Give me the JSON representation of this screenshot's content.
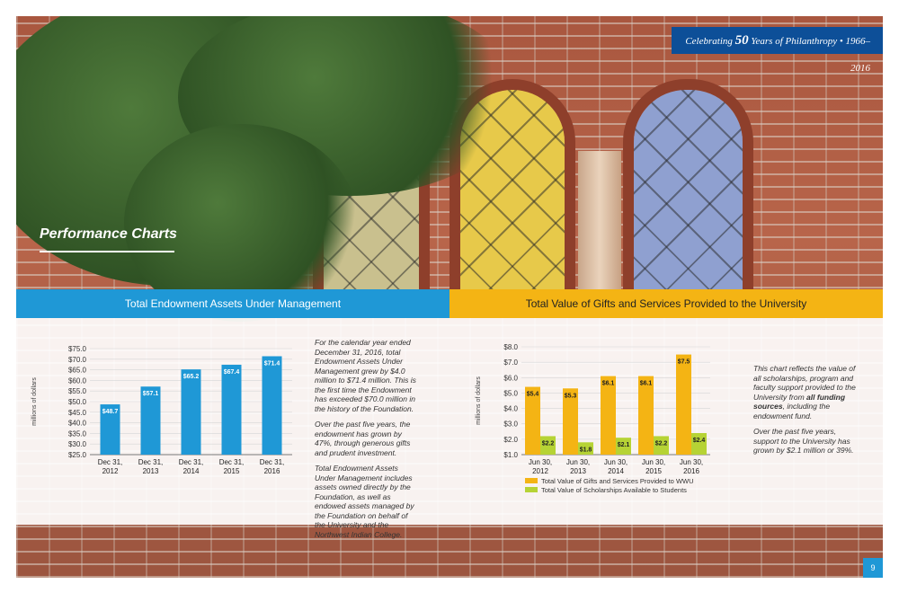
{
  "banner": {
    "pre": "Celebrating ",
    "number": "50",
    "post": " Years of Philanthropy  •  1966–2016"
  },
  "section_title": "Performance Charts",
  "left": {
    "header": "Total Endowment Assets Under Management",
    "paragraphs": [
      "For the calendar year ended December 31, 2016, total Endowment Assets Under Management grew by $4.0 million to $71.4 million. This is the first time the Endowment has exceeded $70.0 million in the history of the Foundation.",
      "Over the past five years, the endowment has grown by 47%, through generous gifts and prudent investment.",
      "Total Endowment Assets Under Management includes assets owned directly by the Foundation, as well as endowed assets managed by the Foundation on behalf of the University and the Northwest Indian College."
    ]
  },
  "right": {
    "header": "Total Value of Gifts and Services Provided to the University",
    "para1_a": "This chart reflects the value of all scholarships, program and faculty support provided to the University from ",
    "para1_b": "all funding sources",
    "para1_c": ", including the endowment fund.",
    "para2": "Over the past five years, support to the University has grown by $2.1 million or 39%."
  },
  "page_number": "9",
  "colors": {
    "blue": "#1f98d6",
    "dark_blue": "#0d4f98",
    "gold": "#f4b414",
    "lime": "#b6d335"
  },
  "chart_data": [
    {
      "type": "bar",
      "title": "",
      "ylabel": "millions of dollars",
      "categories": [
        [
          "Dec 31,",
          "2012"
        ],
        [
          "Dec 31,",
          "2013"
        ],
        [
          "Dec 31,",
          "2014"
        ],
        [
          "Dec 31,",
          "2015"
        ],
        [
          "Dec 31,",
          "2016"
        ]
      ],
      "values": [
        48.7,
        57.1,
        65.2,
        67.4,
        71.4
      ],
      "labels": [
        "$48.7",
        "$57.1",
        "$65.2",
        "$67.4",
        "$71.4"
      ],
      "ylim": [
        25,
        75
      ],
      "yticks": [
        "$25.0",
        "$30.0",
        "$35.0",
        "$40.0",
        "$45.0",
        "$50.0",
        "$55.0",
        "$60.0",
        "$65.0",
        "$70.0",
        "$75.0"
      ],
      "grid": true
    },
    {
      "type": "bar",
      "title": "",
      "ylabel": "millions of dollars",
      "categories": [
        [
          "Jun 30,",
          "2012"
        ],
        [
          "Jun 30,",
          "2013"
        ],
        [
          "Jun 30,",
          "2014"
        ],
        [
          "Jun 30,",
          "2015"
        ],
        [
          "Jun 30,",
          "2016"
        ]
      ],
      "series": [
        {
          "name": "Total Value of Gifts and Services Provided to WWU",
          "values": [
            5.4,
            5.3,
            6.1,
            6.1,
            7.5
          ],
          "labels": [
            "$5.4",
            "$5.3",
            "$6.1",
            "$6.1",
            "$7.5"
          ]
        },
        {
          "name": "Total Value of Scholarships Available to Students",
          "values": [
            2.2,
            1.8,
            2.1,
            2.2,
            2.4
          ],
          "labels": [
            "$2.2",
            "$1.8",
            "$2.1",
            "$2.2",
            "$2.4"
          ]
        }
      ],
      "ylim": [
        1,
        8
      ],
      "yticks": [
        "$1.0",
        "$2.0",
        "$3.0",
        "$4.0",
        "$5.0",
        "$6.0",
        "$7.0",
        "$8.0"
      ],
      "legend": "bottom",
      "grid": true
    }
  ]
}
